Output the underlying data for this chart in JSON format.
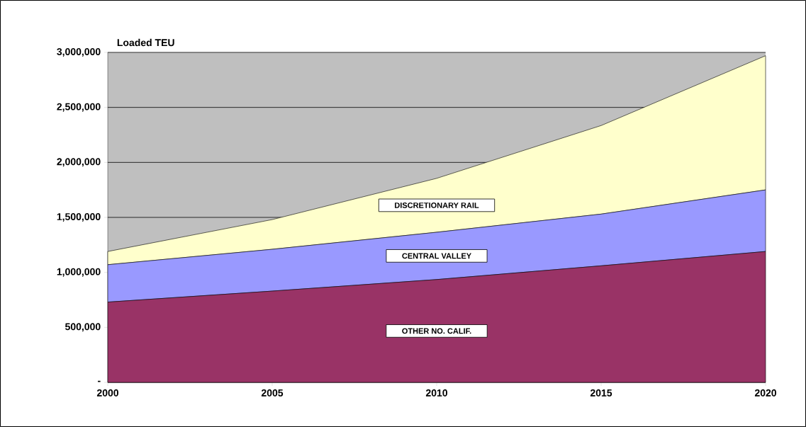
{
  "chart_data": {
    "type": "area",
    "stacked": true,
    "ylabel": "Loaded TEU",
    "x": [
      2000,
      2005,
      2010,
      2015,
      2020
    ],
    "series": [
      {
        "name": "OTHER NO. CALIF.",
        "color": "#993366",
        "values": [
          730000,
          830000,
          935000,
          1060000,
          1190000
        ]
      },
      {
        "name": "CENTRAL VALLEY",
        "color": "#9999ff",
        "values": [
          340000,
          380000,
          430000,
          470000,
          560000
        ]
      },
      {
        "name": "DISCRETIONARY RAIL",
        "color": "#ffffcc",
        "values": [
          120000,
          270000,
          490000,
          805000,
          1220000
        ]
      }
    ],
    "xlim": [
      2000,
      2020
    ],
    "xticks": [
      2000,
      2005,
      2010,
      2015,
      2020
    ],
    "ylim": [
      0,
      3000000
    ],
    "yticks": [
      {
        "value": 0,
        "label": "-"
      },
      {
        "value": 500000,
        "label": "500,000"
      },
      {
        "value": 1000000,
        "label": "1,000,000"
      },
      {
        "value": 1500000,
        "label": "1,500,000"
      },
      {
        "value": 2000000,
        "label": "2,000,000"
      },
      {
        "value": 2500000,
        "label": "2,500,000"
      },
      {
        "value": 3000000,
        "label": "3,000,000"
      }
    ],
    "grid": "y"
  }
}
